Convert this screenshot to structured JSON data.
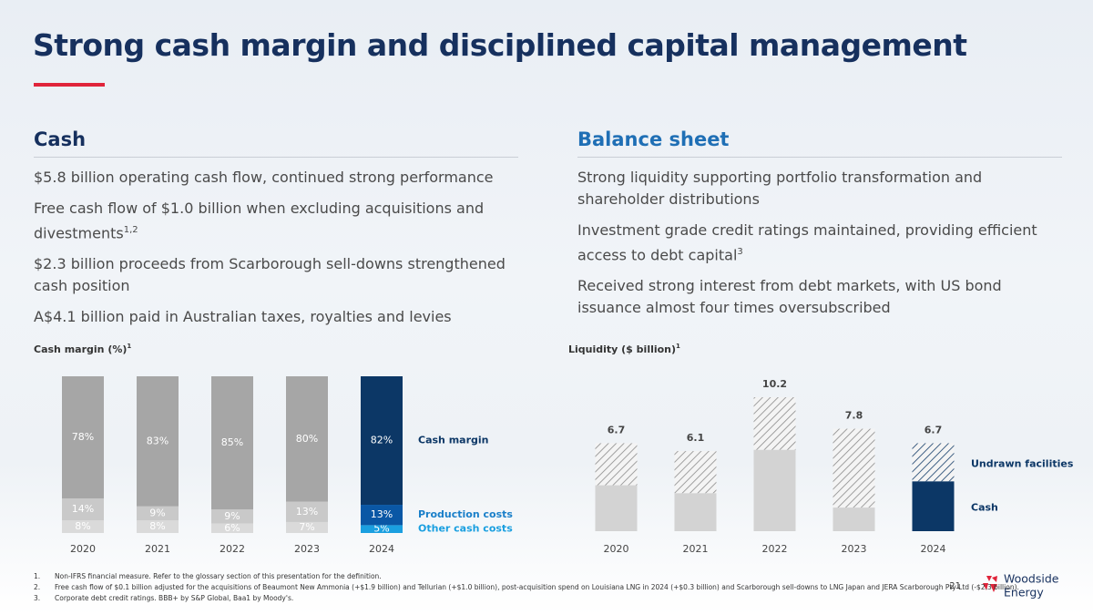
{
  "header": {
    "title": "Strong cash margin and disciplined capital management"
  },
  "columns": [
    {
      "heading": "Cash",
      "items": [
        {
          "text": "$5.8 billion operating cash flow, continued strong performance"
        },
        {
          "text": "Free cash flow of $1.0 billion when excluding acquisitions and divestments",
          "note": "1,2"
        },
        {
          "text": "$2.3 billion proceeds from Scarborough sell-downs strengthened cash position"
        },
        {
          "text": "A$4.1 billion paid in Australian taxes, royalties and levies"
        }
      ]
    },
    {
      "heading": "Balance sheet",
      "items": [
        {
          "text": "Strong liquidity supporting portfolio transformation and shareholder distributions"
        },
        {
          "text": "Investment grade credit ratings maintained, providing efficient access to debt capital",
          "note": "3"
        },
        {
          "text": "Received strong interest from debt markets, with US bond issuance almost four times oversubscribed"
        }
      ]
    }
  ],
  "chart_data": [
    {
      "type": "stacked_bar",
      "ylabel": "Cash margin (%)",
      "ylabel_note": "1",
      "categories": [
        "2020",
        "2021",
        "2022",
        "2023",
        "2024"
      ],
      "series": [
        {
          "name": "Other cash costs",
          "legend_color": "#1a9fe0",
          "colors": [
            "#dadada",
            "#dadada",
            "#dadada",
            "#dadada",
            "#1a9fe0"
          ],
          "values": [
            8,
            8,
            6,
            7,
            5
          ],
          "value_labels": [
            "8%",
            "8%",
            "6%",
            "7%",
            "5%"
          ]
        },
        {
          "name": "Production costs",
          "legend_color": "#1a7fc9",
          "colors": [
            "#c9c9c9",
            "#c9c9c9",
            "#c9c9c9",
            "#c9c9c9",
            "#0a57a5"
          ],
          "values": [
            14,
            9,
            9,
            13,
            13
          ],
          "value_labels": [
            "14%",
            "9%",
            "9%",
            "13%",
            "13%"
          ]
        },
        {
          "name": "Cash margin",
          "legend_color": "#0c3766",
          "colors": [
            "#a6a6a6",
            "#a6a6a6",
            "#a6a6a6",
            "#a6a6a6",
            "#0c3766"
          ],
          "values": [
            78,
            83,
            85,
            80,
            82
          ],
          "value_labels": [
            "78%",
            "83%",
            "85%",
            "80%",
            "82%"
          ]
        }
      ]
    },
    {
      "type": "stacked_bar",
      "ylabel": "Liquidity ($ billion)",
      "ylabel_note": "1",
      "categories": [
        "2020",
        "2021",
        "2022",
        "2023",
        "2024"
      ],
      "series": [
        {
          "name": "Cash",
          "legend_color": "#0c3766",
          "colors": [
            "#d3d3d3",
            "#d3d3d3",
            "#d3d3d3",
            "#d3d3d3",
            "#0c3766"
          ],
          "values": [
            3.5,
            2.9,
            6.2,
            1.8,
            3.8
          ]
        },
        {
          "name": "Undrawn facilities",
          "legend_color": "#0c3766",
          "hatch": true,
          "colors": [
            "#8a8a8a",
            "#8a8a8a",
            "#8a8a8a",
            "#8a8a8a",
            "#0c3766"
          ],
          "values": [
            3.2,
            3.2,
            4.0,
            6.0,
            2.9
          ]
        }
      ],
      "totals": [
        6.7,
        6.1,
        10.2,
        7.8,
        6.7
      ]
    }
  ],
  "footnotes": [
    {
      "number": "1.",
      "text": "Non-IFRS financial measure. Refer to the glossary section of this presentation for the definition."
    },
    {
      "number": "2.",
      "text": "Free cash flow of $0.1 billion adjusted for the acquisitions of Beaumont New Ammonia (+$1.9 billion) and Tellurian (+$1.0 billion), post-acquisition spend on Louisiana LNG in 2024 (+$0.3 billion) and Scarborough sell-downs to LNG Japan and JERA Scarborough Pty Ltd (-$2.3 billion)."
    },
    {
      "number": "3.",
      "text": "Corporate debt credit ratings. BBB+ by S&P Global, Baa1 by Moody's."
    }
  ],
  "page_number": "21",
  "logo": {
    "line1": "Woodside",
    "line2": "Energy"
  }
}
